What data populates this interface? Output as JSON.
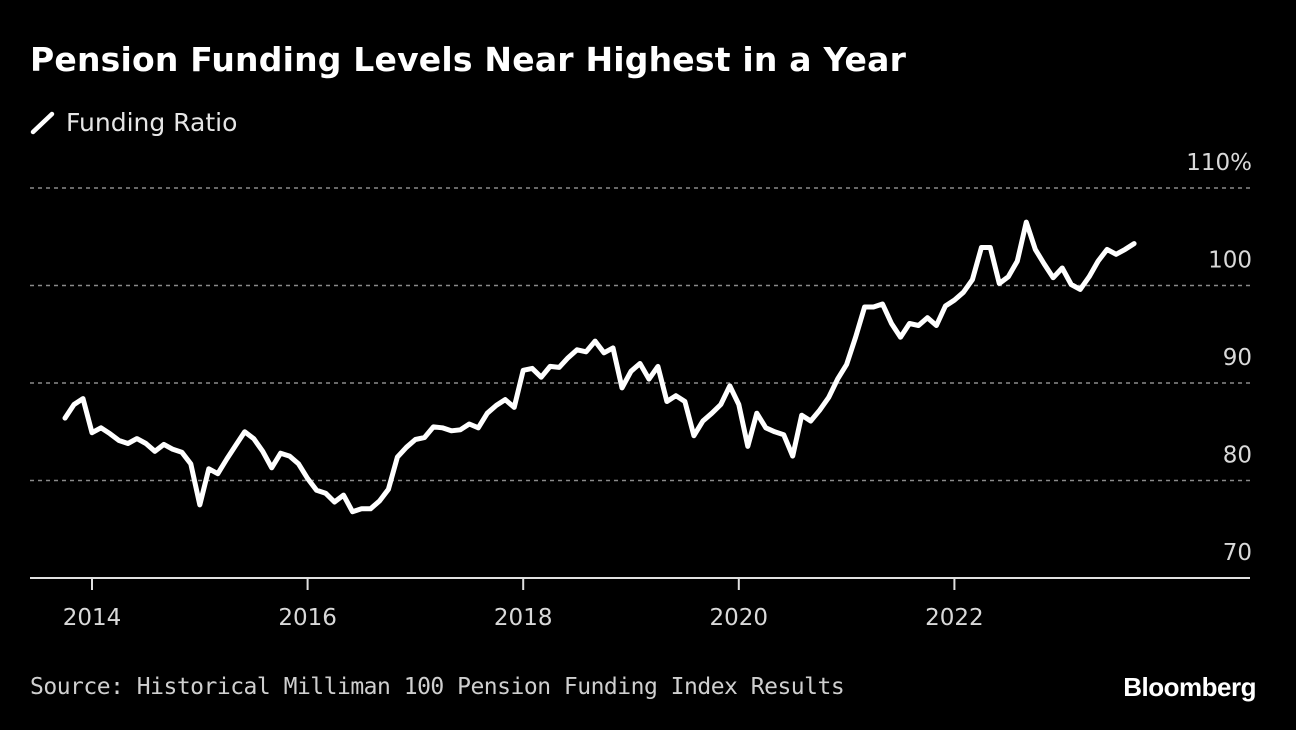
{
  "chart_data": {
    "type": "line",
    "title": "Pension Funding Levels Near Highest in a Year",
    "xlabel": "",
    "ylabel": "",
    "ylim": [
      70,
      110
    ],
    "y_ticks": [
      {
        "value": 110,
        "label": "110%"
      },
      {
        "value": 100,
        "label": "100"
      },
      {
        "value": 90,
        "label": "90"
      },
      {
        "value": 80,
        "label": "80"
      },
      {
        "value": 70,
        "label": "70"
      }
    ],
    "x_ticks": [
      "2014",
      "2016",
      "2018",
      "2020",
      "2022"
    ],
    "grid": true,
    "legend_position": "top-left",
    "series": [
      {
        "name": "Funding Ratio",
        "color": "#ffffff",
        "x": [
          "2013-10",
          "2013-11",
          "2013-12",
          "2014-01",
          "2014-02",
          "2014-03",
          "2014-04",
          "2014-05",
          "2014-06",
          "2014-07",
          "2014-08",
          "2014-09",
          "2014-10",
          "2014-11",
          "2014-12",
          "2015-01",
          "2015-02",
          "2015-03",
          "2015-04",
          "2015-05",
          "2015-06",
          "2015-07",
          "2015-08",
          "2015-09",
          "2015-10",
          "2015-11",
          "2015-12",
          "2016-01",
          "2016-02",
          "2016-03",
          "2016-04",
          "2016-05",
          "2016-06",
          "2016-07",
          "2016-08",
          "2016-09",
          "2016-10",
          "2016-11",
          "2016-12",
          "2017-01",
          "2017-02",
          "2017-03",
          "2017-04",
          "2017-05",
          "2017-06",
          "2017-07",
          "2017-08",
          "2017-09",
          "2017-10",
          "2017-11",
          "2017-12",
          "2018-01",
          "2018-02",
          "2018-03",
          "2018-04",
          "2018-05",
          "2018-06",
          "2018-07",
          "2018-08",
          "2018-09",
          "2018-10",
          "2018-11",
          "2018-12",
          "2019-01",
          "2019-02",
          "2019-03",
          "2019-04",
          "2019-05",
          "2019-06",
          "2019-07",
          "2019-08",
          "2019-09",
          "2019-10",
          "2019-11",
          "2019-12",
          "2020-01",
          "2020-02",
          "2020-03",
          "2020-04",
          "2020-05",
          "2020-06",
          "2020-07",
          "2020-08",
          "2020-09",
          "2020-10",
          "2020-11",
          "2020-12",
          "2021-01",
          "2021-02",
          "2021-03",
          "2021-04",
          "2021-05",
          "2021-06",
          "2021-07",
          "2021-08",
          "2021-09",
          "2021-10",
          "2021-11",
          "2021-12",
          "2022-01",
          "2022-02",
          "2022-03",
          "2022-04",
          "2022-05",
          "2022-06",
          "2022-07",
          "2022-08",
          "2022-09",
          "2022-10",
          "2022-11",
          "2022-12",
          "2023-01",
          "2023-02",
          "2023-03",
          "2023-04",
          "2023-05",
          "2023-06",
          "2023-07",
          "2023-08",
          "2023-09"
        ],
        "values": [
          86.4,
          87.8,
          88.4,
          84.9,
          85.4,
          84.8,
          84.1,
          83.8,
          84.3,
          83.8,
          83.0,
          83.7,
          83.2,
          82.9,
          81.7,
          77.5,
          81.2,
          80.7,
          82.2,
          83.6,
          85.0,
          84.3,
          83.0,
          81.3,
          82.8,
          82.5,
          81.7,
          80.2,
          79.0,
          78.7,
          77.8,
          78.5,
          76.8,
          77.1,
          77.1,
          77.9,
          79.1,
          82.4,
          83.4,
          84.2,
          84.4,
          85.5,
          85.4,
          85.1,
          85.2,
          85.8,
          85.4,
          86.9,
          87.7,
          88.3,
          87.5,
          91.3,
          91.5,
          90.6,
          91.7,
          91.6,
          92.6,
          93.4,
          93.2,
          94.3,
          93.1,
          93.6,
          89.5,
          91.2,
          92.0,
          90.4,
          91.7,
          88.1,
          88.7,
          88.1,
          84.6,
          86.1,
          86.9,
          87.8,
          89.7,
          87.8,
          83.5,
          86.9,
          85.4,
          85.0,
          84.7,
          82.5,
          86.7,
          86.1,
          87.2,
          88.5,
          90.4,
          91.9,
          94.7,
          97.8,
          97.8,
          98.1,
          96.1,
          94.7,
          96.1,
          95.9,
          96.7,
          95.9,
          97.9,
          98.5,
          99.3,
          100.6,
          103.9,
          103.9,
          100.2,
          100.9,
          102.5,
          106.5,
          103.7,
          102.2,
          100.8,
          101.8,
          100.1,
          99.6,
          100.9,
          102.5,
          103.7,
          103.2,
          103.7,
          104.3
        ]
      }
    ]
  },
  "legend_label": "Funding Ratio",
  "source": "Source: Historical Milliman 100 Pension Funding Index Results",
  "brand": "Bloomberg"
}
